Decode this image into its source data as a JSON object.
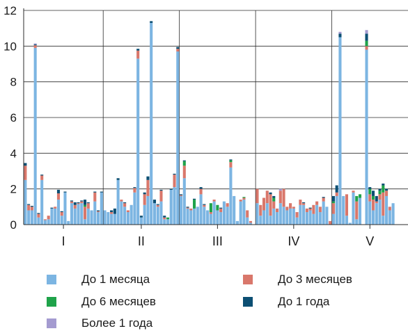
{
  "chart_data": {
    "type": "bar",
    "stacked": true,
    "ylim": [
      0,
      12
    ],
    "y_ticks": [
      "0",
      "2",
      "4",
      "6",
      "8",
      "10",
      "12"
    ],
    "grid": true,
    "groups": [
      {
        "label": "I",
        "count": 24
      },
      {
        "label": "II",
        "count": 23
      },
      {
        "label": "III",
        "count": 23
      },
      {
        "label": "IV",
        "count": 23
      },
      {
        "label": "V",
        "count": 23
      }
    ],
    "series": [
      {
        "name": "До 1 месяца",
        "color": "#7cb5e2"
      },
      {
        "name": "До 3 месяцев",
        "color": "#d9776b"
      },
      {
        "name": "До 6 месяцев",
        "color": "#1fa34a"
      },
      {
        "name": "До 1 года",
        "color": "#0c4f73"
      },
      {
        "name": "Более 1 года",
        "color": "#a49bd0"
      }
    ],
    "stacks": [
      [
        2.5,
        0.8,
        0,
        0.15,
        0
      ],
      [
        0.8,
        0.3,
        0,
        0.05,
        0
      ],
      [
        0.8,
        0.2,
        0,
        0.05,
        0
      ],
      [
        9.9,
        0.15,
        0,
        0.05,
        0.05
      ],
      [
        0.4,
        0.2,
        0,
        0.05,
        0
      ],
      [
        2.5,
        0.25,
        0,
        0.05,
        0
      ],
      [
        0.25,
        0.05,
        0,
        0,
        0
      ],
      [
        0.3,
        0.2,
        0,
        0,
        0
      ],
      [
        0.9,
        0,
        0,
        0.05,
        0
      ],
      [
        0.9,
        0.1,
        0,
        0,
        0
      ],
      [
        1.4,
        0.35,
        0,
        0.2,
        0
      ],
      [
        0.5,
        0.2,
        0,
        0.05,
        0
      ],
      [
        1.8,
        0,
        0,
        0.05,
        0
      ],
      [
        0.2,
        0,
        0,
        0,
        0
      ],
      [
        1.2,
        0.1,
        0,
        0.05,
        0
      ],
      [
        0.9,
        0.2,
        0,
        0.15,
        0
      ],
      [
        1.15,
        0.05,
        0,
        0.05,
        0
      ],
      [
        1.2,
        0.1,
        0,
        0.05,
        0
      ],
      [
        0.3,
        0.7,
        0.1,
        0.3,
        0
      ],
      [
        0.9,
        0.3,
        0,
        0.05,
        0
      ],
      [
        0.8,
        0,
        0,
        0,
        0
      ],
      [
        1.3,
        0.5,
        0,
        0.05,
        0
      ],
      [
        0.7,
        0.05,
        0,
        0.05,
        0
      ],
      [
        1.8,
        0,
        0,
        0.05,
        0
      ],
      [
        0.8,
        0,
        0,
        0,
        0
      ],
      [
        0.7,
        0,
        0,
        0,
        0
      ],
      [
        0.6,
        0.1,
        0,
        0.1,
        0
      ],
      [
        0.6,
        0,
        0,
        0.3,
        0
      ],
      [
        2.5,
        0,
        0,
        0.1,
        0
      ],
      [
        1.3,
        0.1,
        0,
        0,
        0
      ],
      [
        1.0,
        0.2,
        0,
        0.05,
        0
      ],
      [
        0.7,
        0.1,
        0,
        0,
        0
      ],
      [
        1.1,
        0,
        0,
        0,
        0
      ],
      [
        1.8,
        0.25,
        0,
        0.05,
        0
      ],
      [
        9.3,
        0.45,
        0,
        0.1,
        0
      ],
      [
        0.4,
        0,
        0,
        0.1,
        0
      ],
      [
        1.1,
        0.6,
        0,
        0.1,
        0
      ],
      [
        1.6,
        0.9,
        0,
        0.2,
        0
      ],
      [
        11.3,
        0,
        0,
        0.1,
        0
      ],
      [
        1.2,
        0,
        0,
        0.2,
        0
      ],
      [
        1.0,
        0.1,
        0,
        0.05,
        0
      ],
      [
        1.3,
        0.6,
        0,
        0.05,
        0
      ],
      [
        0.3,
        0.1,
        0,
        0.1,
        0
      ],
      [
        0.3,
        0,
        0.1,
        0,
        0
      ],
      [
        1.95,
        0,
        0,
        0.05,
        0
      ],
      [
        2.1,
        0.7,
        0,
        0.05,
        0
      ],
      [
        9.7,
        0.15,
        0,
        0.1,
        0
      ],
      [
        1.6,
        0.05,
        0,
        0.05,
        0
      ],
      [
        2.6,
        0.7,
        0.25,
        0.05,
        0
      ],
      [
        0.9,
        0.05,
        0,
        0.05,
        0
      ],
      [
        0.8,
        0.1,
        0,
        0,
        0
      ],
      [
        0.9,
        0,
        0.5,
        0.05,
        0
      ],
      [
        1.0,
        0,
        0,
        0,
        0
      ],
      [
        1.7,
        0.3,
        0,
        0.1,
        0
      ],
      [
        1.0,
        0.1,
        0,
        0.05,
        0
      ],
      [
        0.8,
        0,
        0,
        0,
        0
      ],
      [
        0.6,
        0.1,
        0.5,
        0,
        0
      ],
      [
        1.3,
        0.1,
        0,
        0,
        0
      ],
      [
        0.8,
        0,
        0.3,
        0,
        0
      ],
      [
        0.7,
        0.2,
        0,
        0.05,
        0
      ],
      [
        1.3,
        0,
        0,
        0,
        0
      ],
      [
        1.0,
        0.2,
        0,
        0,
        0
      ],
      [
        3.2,
        0.3,
        0.1,
        0.05,
        0
      ],
      [
        1.6,
        0,
        0,
        0,
        0
      ],
      [
        0.2,
        0,
        0,
        0,
        0
      ],
      [
        1.3,
        0.1,
        0,
        0,
        0
      ],
      [
        1.4,
        0.1,
        0.05,
        0,
        0
      ],
      [
        0.4,
        0.4,
        0,
        0,
        0
      ],
      [
        0.1,
        0.1,
        0,
        0,
        0
      ],
      [
        0,
        0,
        0,
        0,
        0
      ],
      [
        1.2,
        0.8,
        0,
        0,
        0
      ],
      [
        0.5,
        0.6,
        0,
        0,
        0
      ],
      [
        0.8,
        0.7,
        0,
        0,
        0
      ],
      [
        1.2,
        0.7,
        0,
        0,
        0
      ],
      [
        0.5,
        1.2,
        0,
        0.1,
        0
      ],
      [
        0.9,
        0.4,
        0.2,
        0.1,
        0
      ],
      [
        0.7,
        0.2,
        0,
        0,
        0
      ],
      [
        1.2,
        0.7,
        0,
        0,
        0.1
      ],
      [
        1.0,
        1.0,
        0,
        0,
        0
      ],
      [
        0.8,
        0.2,
        0,
        0,
        0
      ],
      [
        0.9,
        0.3,
        0,
        0,
        0
      ],
      [
        0.9,
        0.1,
        0,
        0,
        0
      ],
      [
        0.4,
        0.3,
        0,
        0,
        0
      ],
      [
        1.1,
        0.3,
        0,
        0,
        0
      ],
      [
        1.1,
        0.1,
        0,
        0.05,
        0
      ],
      [
        0.7,
        0.2,
        0,
        0,
        0
      ],
      [
        0.8,
        0.1,
        0,
        0.05,
        0
      ],
      [
        0.6,
        0.5,
        0,
        0,
        0
      ],
      [
        1.1,
        0.2,
        0,
        0,
        0
      ],
      [
        0.7,
        0.3,
        0,
        0,
        0
      ],
      [
        1.3,
        0.2,
        0,
        0.05,
        0
      ],
      [
        1.0,
        0,
        0,
        0,
        0
      ],
      [
        0,
        0.2,
        0,
        0,
        0
      ],
      [
        0.6,
        0.6,
        0.1,
        0.3,
        0
      ],
      [
        1.6,
        0.2,
        0,
        0.4,
        0
      ],
      [
        10.5,
        0,
        0,
        0.2,
        0.1
      ],
      [
        1.6,
        0,
        0,
        0,
        0
      ],
      [
        0.5,
        1.2,
        0,
        0,
        0
      ],
      [
        0.1,
        0,
        0,
        0,
        0
      ],
      [
        1.8,
        0.1,
        0,
        0,
        0
      ],
      [
        0.3,
        1.0,
        0.3,
        0,
        0
      ],
      [
        1.5,
        0,
        0.2,
        0,
        0
      ],
      [
        0,
        0,
        0,
        0,
        0
      ],
      [
        9.8,
        0.2,
        0.3,
        0.4,
        0.2
      ],
      [
        1.3,
        0.4,
        0.3,
        0.1,
        0
      ],
      [
        0.8,
        0.6,
        0.2,
        0.3,
        0
      ],
      [
        1.2,
        0.1,
        0,
        0.3,
        0
      ],
      [
        1.4,
        0.3,
        0.2,
        0.1,
        0
      ],
      [
        0.5,
        1.3,
        0.4,
        0.1,
        0
      ],
      [
        1.6,
        0.3,
        0,
        0.1,
        0
      ],
      [
        0.8,
        0.2,
        0,
        0,
        0
      ],
      [
        1.2,
        0,
        0,
        0,
        0
      ],
      [
        0,
        0,
        0,
        0,
        0
      ],
      [
        0,
        0,
        0,
        0,
        0
      ],
      [
        0,
        0,
        0,
        0,
        0
      ],
      [
        0,
        0,
        0,
        0,
        0
      ]
    ]
  }
}
